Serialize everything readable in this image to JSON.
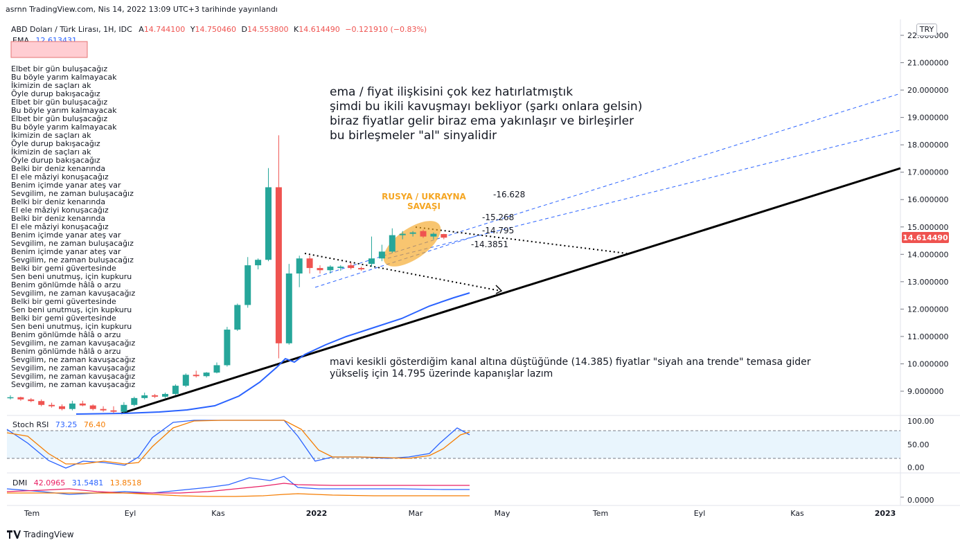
{
  "published_line": "asrnn TradingView.com, Nis 14, 2022 13:09 UTC+3 tarihinde yayınlandı",
  "currency_tag": "TRY",
  "header": {
    "symbol": "ABD Doları / Türk Lirası, 1H, IDC",
    "o_label": "A",
    "o_value": "14.744100",
    "h_label": "Y",
    "h_value": "14.750460",
    "l_label": "D",
    "l_value": "14.553800",
    "c_label": "K",
    "c_value": "14.614490",
    "change": "−0.121910 (−0.83%)",
    "ema_label": "EMA",
    "ema_value": "12.613431"
  },
  "stoch": {
    "label": "Stoch RSI",
    "k": "73.25",
    "d": "76.40",
    "ticks": [
      "100.00",
      "50.00",
      "0.00"
    ]
  },
  "dmi": {
    "label": "DMI",
    "v1": "42.0965",
    "v2": "31.5481",
    "v3": "13.8518",
    "tick": "0.0000"
  },
  "footer": {
    "brand": "TradingView"
  },
  "colors": {
    "up": "#26a69a",
    "down": "#ef5350",
    "ema": "#2962ff",
    "trend": "#000000",
    "stoch_k": "#2962ff",
    "stoch_d": "#f57c00",
    "dmi_plus": "#2962ff",
    "dmi_minus": "#e91e63",
    "adx": "#f57c00",
    "price_tag": "#ef5350"
  },
  "chart_data": {
    "type": "candlestick",
    "y_ticks": [
      "22.000000",
      "21.000000",
      "20.000000",
      "19.000000",
      "18.000000",
      "17.000000",
      "16.000000",
      "15.000000",
      "14.000000",
      "13.000000",
      "12.000000",
      "11.000000",
      "10.000000",
      "9.000000"
    ],
    "ylim": [
      8.4,
      22.2
    ],
    "x_ticks": [
      "Tem",
      "Eyl",
      "Kas",
      "2022",
      "Mar",
      "May",
      "Tem",
      "Eyl",
      "Kas",
      "2023"
    ],
    "last_price": "14.614490",
    "candles": [
      {
        "o": 8.75,
        "h": 8.85,
        "l": 8.7,
        "c": 8.78
      },
      {
        "o": 8.78,
        "h": 8.8,
        "l": 8.65,
        "c": 8.7
      },
      {
        "o": 8.7,
        "h": 8.75,
        "l": 8.6,
        "c": 8.64
      },
      {
        "o": 8.64,
        "h": 8.7,
        "l": 8.45,
        "c": 8.5
      },
      {
        "o": 8.5,
        "h": 8.58,
        "l": 8.4,
        "c": 8.45
      },
      {
        "o": 8.45,
        "h": 8.52,
        "l": 8.3,
        "c": 8.35
      },
      {
        "o": 8.35,
        "h": 8.65,
        "l": 8.3,
        "c": 8.55
      },
      {
        "o": 8.55,
        "h": 8.65,
        "l": 8.45,
        "c": 8.48
      },
      {
        "o": 8.48,
        "h": 8.52,
        "l": 8.3,
        "c": 8.35
      },
      {
        "o": 8.35,
        "h": 8.45,
        "l": 8.25,
        "c": 8.3
      },
      {
        "o": 8.3,
        "h": 8.45,
        "l": 8.2,
        "c": 8.25
      },
      {
        "o": 8.25,
        "h": 8.6,
        "l": 8.2,
        "c": 8.5
      },
      {
        "o": 8.5,
        "h": 8.8,
        "l": 8.45,
        "c": 8.75
      },
      {
        "o": 8.75,
        "h": 8.95,
        "l": 8.7,
        "c": 8.85
      },
      {
        "o": 8.85,
        "h": 8.9,
        "l": 8.75,
        "c": 8.8
      },
      {
        "o": 8.8,
        "h": 8.95,
        "l": 8.75,
        "c": 8.9
      },
      {
        "o": 8.9,
        "h": 9.25,
        "l": 8.85,
        "c": 9.2
      },
      {
        "o": 9.2,
        "h": 9.65,
        "l": 9.15,
        "c": 9.6
      },
      {
        "o": 9.6,
        "h": 9.75,
        "l": 9.5,
        "c": 9.55
      },
      {
        "o": 9.55,
        "h": 9.7,
        "l": 9.5,
        "c": 9.68
      },
      {
        "o": 9.68,
        "h": 10.05,
        "l": 9.65,
        "c": 9.95
      },
      {
        "o": 9.95,
        "h": 11.35,
        "l": 9.9,
        "c": 11.25
      },
      {
        "o": 11.25,
        "h": 12.2,
        "l": 11.2,
        "c": 12.15
      },
      {
        "o": 12.15,
        "h": 13.9,
        "l": 12.05,
        "c": 13.6
      },
      {
        "o": 13.6,
        "h": 13.85,
        "l": 13.45,
        "c": 13.8
      },
      {
        "o": 13.8,
        "h": 17.15,
        "l": 13.75,
        "c": 16.45
      },
      {
        "o": 16.45,
        "h": 18.35,
        "l": 10.2,
        "c": 10.75
      },
      {
        "o": 10.75,
        "h": 13.65,
        "l": 10.7,
        "c": 13.3
      },
      {
        "o": 13.3,
        "h": 13.95,
        "l": 12.8,
        "c": 13.85
      },
      {
        "o": 13.85,
        "h": 13.95,
        "l": 13.3,
        "c": 13.5
      },
      {
        "o": 13.5,
        "h": 13.6,
        "l": 13.3,
        "c": 13.42
      },
      {
        "o": 13.42,
        "h": 13.6,
        "l": 13.3,
        "c": 13.55
      },
      {
        "o": 13.5,
        "h": 13.6,
        "l": 13.4,
        "c": 13.55
      },
      {
        "o": 13.6,
        "h": 13.7,
        "l": 13.45,
        "c": 13.5
      },
      {
        "o": 13.5,
        "h": 13.55,
        "l": 13.4,
        "c": 13.45
      },
      {
        "o": 13.65,
        "h": 14.65,
        "l": 13.55,
        "c": 13.85
      },
      {
        "o": 13.85,
        "h": 14.35,
        "l": 13.75,
        "c": 14.1
      },
      {
        "o": 14.1,
        "h": 14.95,
        "l": 14.05,
        "c": 14.7
      },
      {
        "o": 14.7,
        "h": 14.85,
        "l": 14.55,
        "c": 14.75
      },
      {
        "o": 14.75,
        "h": 14.85,
        "l": 14.65,
        "c": 14.8
      },
      {
        "o": 14.85,
        "h": 14.9,
        "l": 14.6,
        "c": 14.65
      },
      {
        "o": 14.65,
        "h": 14.8,
        "l": 14.55,
        "c": 14.75
      },
      {
        "o": 14.74,
        "h": 14.75,
        "l": 14.55,
        "c": 14.61
      }
    ],
    "levels": [
      {
        "label": "-16.628",
        "value": 16.628
      },
      {
        "label": "-15.268",
        "value": 15.268
      },
      {
        "label": "-14.795",
        "value": 14.795
      },
      {
        "label": "-14.3851",
        "value": 14.3851
      }
    ],
    "annotations": {
      "war_label_1": "RUSYA / UKRAYNA",
      "war_label_2": "SAVAŞI",
      "note_top": [
        "ema / fiyat ilişkisini çok kez hatırlatmıştık",
        "şimdi bu ikili kavuşmayı bekliyor (şarkı onlara gelsin)",
        "biraz fiyatlar gelir biraz ema yakınlaşır ve birleşirler",
        "bu birleşmeler \"al\" sinyalidir"
      ],
      "note_bottom": [
        "mavi kesikli gösterdiğim kanal altına düştüğünde (14.385) fiyatlar \"siyah ana trende\" temasa gider",
        "yükseliş için 14.795 üzerinde kapanışlar lazım"
      ],
      "lyrics": [
        "Elbet bir gün buluşacağız",
        "Bu böyle yarım kalmayacak",
        "İkimizin de saçları ak",
        "Öyle durup bakışacağız",
        "Elbet bir gün buluşacağız",
        "Bu böyle yarım kalmayacak",
        "Elbet bir gün buluşacağız",
        "Bu böyle yarım kalmayacak",
        "İkimizin de saçları ak",
        "Öyle durup bakışacağız",
        "İkimizin de saçları ak",
        "Öyle durup bakışacağız",
        "Belki bir deniz kenarında",
        "El ele mâziyi konuşacağız",
        "Benim içimde yanar ateş var",
        "Sevgilim, ne zaman buluşacağız",
        "Belki bir deniz kenarında",
        "El ele mâziyi konuşacağız",
        "Belki bir deniz kenarında",
        "El ele mâziyi konuşacağız",
        "Benim içimde yanar ateş var",
        "Sevgilim, ne zaman buluşacağız",
        "Benim içimde yanar ateş var",
        "Sevgilim, ne zaman buluşacağız",
        "Belki bir gemi güvertesinde",
        "Sen beni unutmuş, için kupkuru",
        "Benim gönlümde hâlâ o arzu",
        "Sevgilim, ne zaman kavuşacağız",
        "Belki bir gemi güvertesinde",
        "Sen beni unutmuş, için kupkuru",
        "Belki bir gemi güvertesinde",
        "Sen beni unutmuş, için kupkuru",
        "Benim gönlümde hâlâ o arzu",
        "Sevgilim, ne zaman kavuşacağız",
        "Benim gönlümde hâlâ o arzu",
        "Sevgilim, ne zaman kavuşacağız",
        "Sevgilim, ne zaman kavuşacağız",
        "Sevgilim, ne zaman kavuşacağız",
        "Sevgilim, ne zaman kavuşacağız"
      ]
    }
  }
}
